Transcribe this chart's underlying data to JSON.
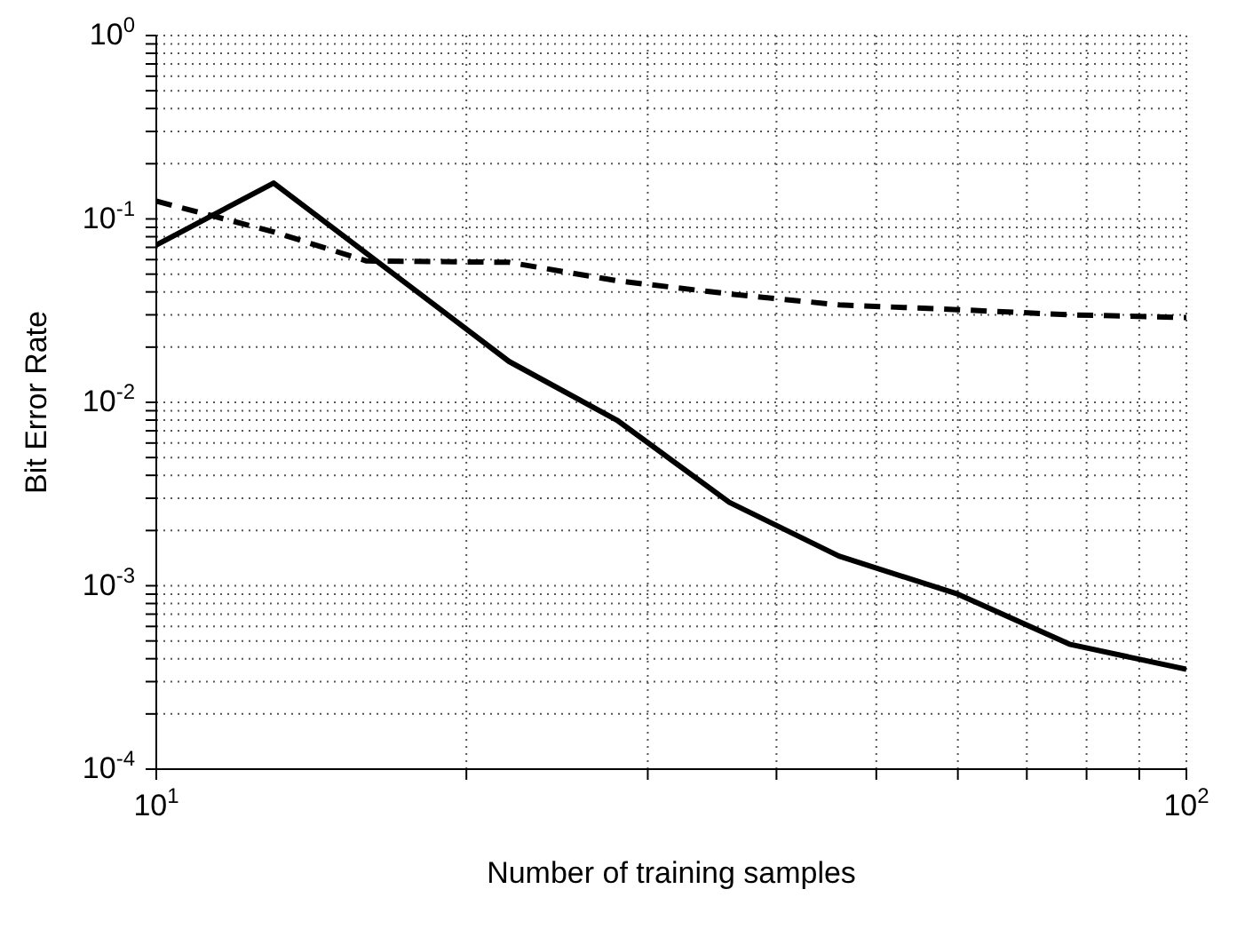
{
  "chart_data": {
    "type": "line",
    "xlabel": "Number of training samples",
    "ylabel": "Bit Error Rate",
    "log": "xy",
    "grid": true,
    "marker": "none",
    "xlim": [
      10,
      100
    ],
    "ylim": [
      0.0001,
      1
    ],
    "xticks": [
      {
        "value": 10,
        "label": "10$^{1}$"
      },
      {
        "value": 20,
        "label": null
      },
      {
        "value": 30,
        "label": null
      },
      {
        "value": 40,
        "label": null
      },
      {
        "value": 50,
        "label": null
      },
      {
        "value": 60,
        "label": null
      },
      {
        "value": 70,
        "label": null
      },
      {
        "value": 80,
        "label": null
      },
      {
        "value": 90,
        "label": null
      },
      {
        "value": 100,
        "label": "10$^{2}$"
      }
    ],
    "yticks": [
      {
        "value": 0.0001,
        "label": "10$^{-4}$"
      },
      {
        "value": 0.0002,
        "label": null
      },
      {
        "value": 0.0003,
        "label": null
      },
      {
        "value": 0.0004,
        "label": null
      },
      {
        "value": 0.0005,
        "label": null
      },
      {
        "value": 0.0006,
        "label": null
      },
      {
        "value": 0.0007,
        "label": null
      },
      {
        "value": 0.0008,
        "label": null
      },
      {
        "value": 0.0009,
        "label": null
      },
      {
        "value": 0.001,
        "label": "10$^{-3}$"
      },
      {
        "value": 0.002,
        "label": null
      },
      {
        "value": 0.003,
        "label": null
      },
      {
        "value": 0.004,
        "label": null
      },
      {
        "value": 0.005,
        "label": null
      },
      {
        "value": 0.006,
        "label": null
      },
      {
        "value": 0.007,
        "label": null
      },
      {
        "value": 0.008,
        "label": null
      },
      {
        "value": 0.009,
        "label": null
      },
      {
        "value": 0.01,
        "label": "10$^{-2}$"
      },
      {
        "value": 0.02,
        "label": null
      },
      {
        "value": 0.03,
        "label": null
      },
      {
        "value": 0.04,
        "label": null
      },
      {
        "value": 0.05,
        "label": null
      },
      {
        "value": 0.06,
        "label": null
      },
      {
        "value": 0.07,
        "label": null
      },
      {
        "value": 0.08,
        "label": null
      },
      {
        "value": 0.09,
        "label": null
      },
      {
        "value": 0.1,
        "label": "10$^{-1}$"
      },
      {
        "value": 0.2,
        "label": null
      },
      {
        "value": 0.3,
        "label": null
      },
      {
        "value": 0.4,
        "label": null
      },
      {
        "value": 0.5,
        "label": null
      },
      {
        "value": 0.6,
        "label": null
      },
      {
        "value": 0.7,
        "label": null
      },
      {
        "value": 0.8,
        "label": null
      },
      {
        "value": 0.9,
        "label": null
      },
      {
        "value": 1,
        "label": "10$^{0}$"
      }
    ],
    "series": [
      {
        "color": "#000000",
        "line_style": "solid",
        "x": [
          10,
          13,
          22,
          28,
          36,
          46,
          60,
          77,
          100
        ],
        "values": [
          0.072,
          0.157,
          0.0167,
          0.008,
          0.00285,
          0.00145,
          0.0009,
          0.00048,
          0.00035
        ]
      },
      {
        "color": "#000000",
        "line_style": "dashed",
        "x": [
          10,
          13,
          16,
          22,
          28,
          36,
          46,
          60,
          77,
          100
        ],
        "values": [
          0.125,
          0.085,
          0.059,
          0.058,
          0.046,
          0.039,
          0.034,
          0.032,
          0.03,
          0.029
        ]
      }
    ]
  }
}
